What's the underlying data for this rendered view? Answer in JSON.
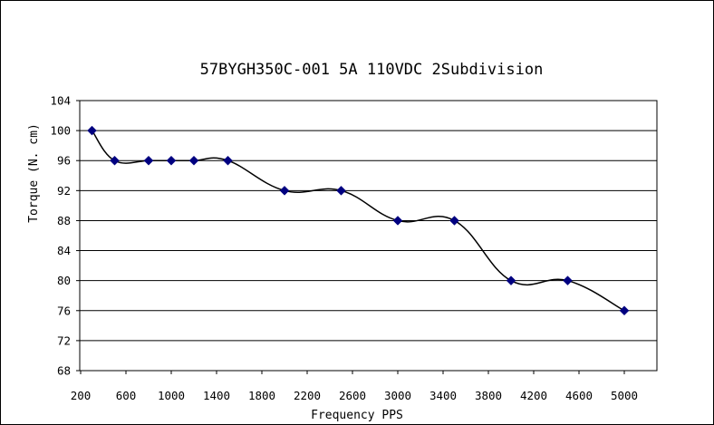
{
  "chart_data": {
    "type": "line",
    "title": "57BYGH350C-001 5A 110VDC 2Subdivision",
    "xlabel": "Frequency PPS",
    "ylabel": "Torque (N. cm)",
    "xlim": [
      200,
      5000
    ],
    "ylim": [
      68,
      104
    ],
    "x_ticks": [
      "200",
      "600",
      "1000",
      "1400",
      "1800",
      "2200",
      "2600",
      "3000",
      "3400",
      "3800",
      "4200",
      "4600",
      "5000"
    ],
    "y_ticks": [
      "68",
      "72",
      "76",
      "80",
      "84",
      "88",
      "92",
      "96",
      "100",
      "104"
    ],
    "grid": "horizontal",
    "legend": "none",
    "line_color": "#000000",
    "marker_color": "#000080",
    "marker": "diamond",
    "series": [
      {
        "x": [
          300,
          500,
          800,
          1000,
          1200,
          1500,
          2000,
          2500,
          3000,
          3500,
          4000,
          4500,
          5000
        ],
        "values": [
          100,
          96,
          96,
          96,
          96,
          96,
          92,
          92,
          88,
          88,
          80,
          80,
          76
        ]
      }
    ]
  }
}
